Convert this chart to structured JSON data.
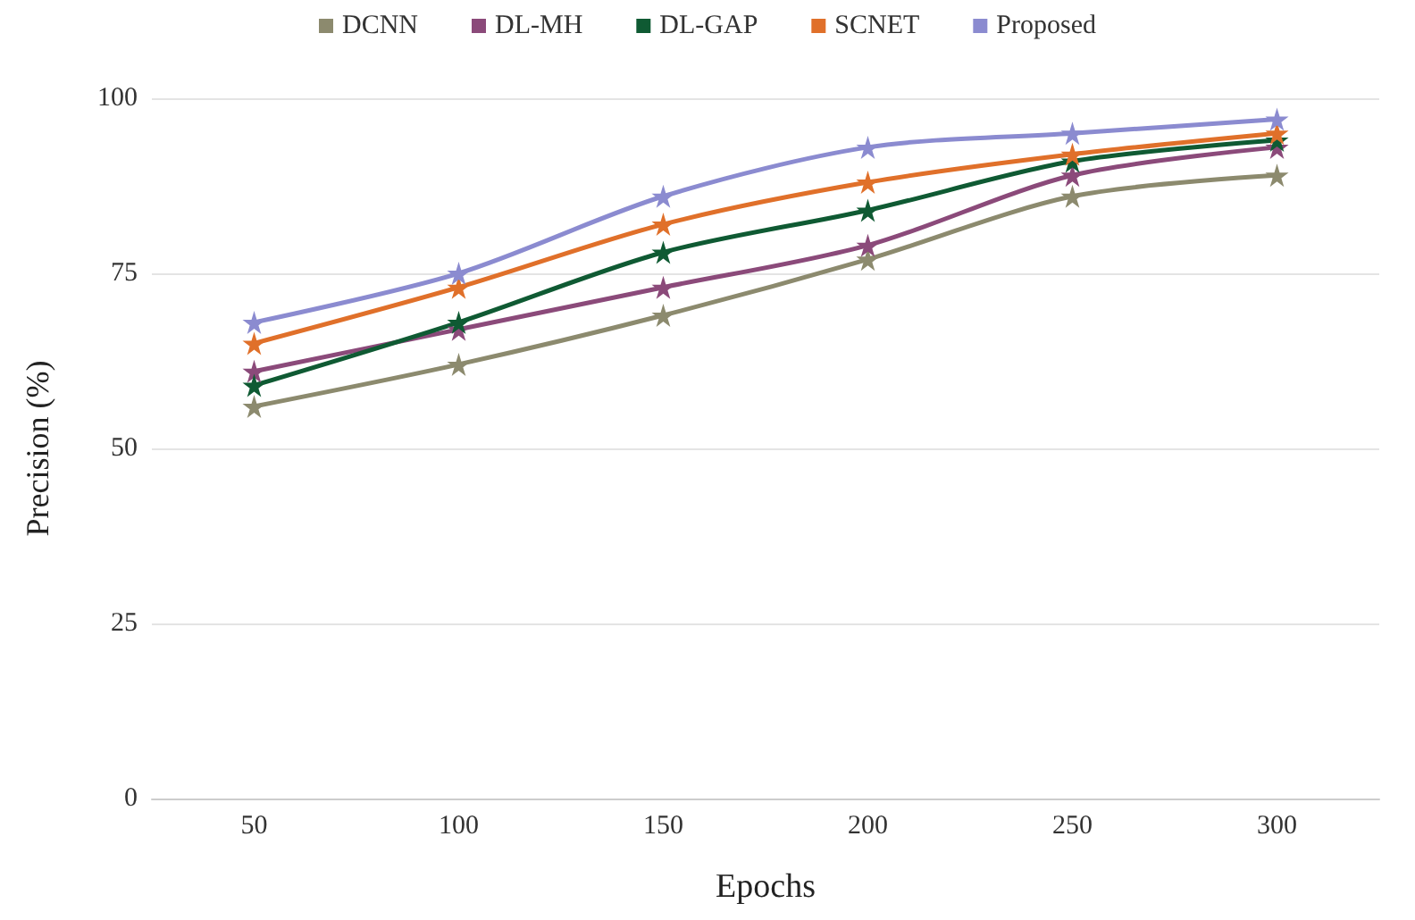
{
  "chart_data": {
    "type": "line",
    "xlabel": "Epochs",
    "ylabel": "Precision (%)",
    "categories": [
      "50",
      "100",
      "150",
      "200",
      "250",
      "300"
    ],
    "series": [
      {
        "name": "DCNN",
        "color": "#8c8a6e",
        "values": [
          56,
          62,
          69,
          77,
          86,
          89
        ]
      },
      {
        "name": "DL-MH",
        "color": "#8b4a7a",
        "values": [
          61,
          67,
          73,
          79,
          89,
          93
        ]
      },
      {
        "name": "DL-GAP",
        "color": "#0f5a33",
        "values": [
          59,
          68,
          78,
          84,
          91,
          94
        ]
      },
      {
        "name": "SCNET",
        "color": "#e0702a",
        "values": [
          65,
          73,
          82,
          88,
          92,
          95
        ]
      },
      {
        "name": "Proposed",
        "color": "#8b8bd0",
        "values": [
          68,
          75,
          86,
          93,
          95,
          97
        ]
      }
    ],
    "ylim": [
      0,
      100
    ],
    "yticks": [
      0,
      25,
      50,
      75,
      100
    ],
    "grid": "y",
    "legend": "top",
    "marker": "star",
    "line_style": "solid"
  }
}
